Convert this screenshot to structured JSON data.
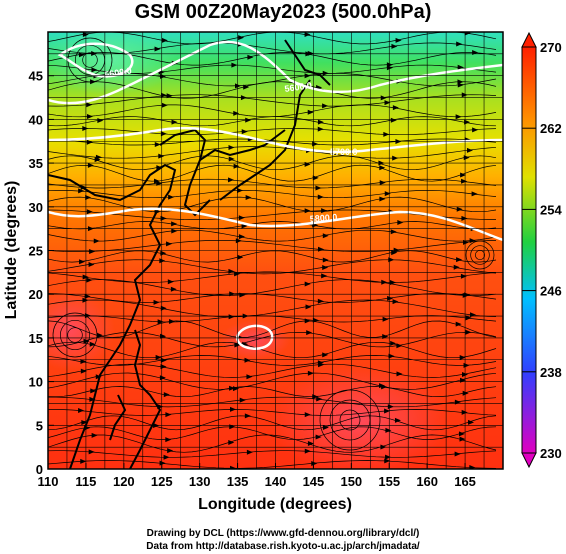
{
  "title": "GSM 00Z20May2023 (500.0hPa)",
  "x_axis": {
    "label": "Longitude (degrees)",
    "ticks": [
      "110",
      "115",
      "120",
      "125",
      "130",
      "135",
      "140",
      "145",
      "150",
      "155",
      "160",
      "165"
    ],
    "range": [
      110,
      170
    ]
  },
  "y_axis": {
    "label": "Latitude (degrees)",
    "ticks": [
      "0",
      "5",
      "10",
      "15",
      "20",
      "25",
      "30",
      "35",
      "40",
      "45"
    ],
    "range": [
      0,
      50
    ]
  },
  "colorbar": {
    "labels": [
      "270",
      "262",
      "254",
      "246",
      "238",
      "230"
    ],
    "range": [
      230,
      270
    ],
    "colors": [
      "#e000c0",
      "#4040ff",
      "#00c0ff",
      "#00e060",
      "#c0e000",
      "#ff9000",
      "#ff2000"
    ]
  },
  "contour_labels": [
    "5600.0",
    "5800.0",
    "5700.0",
    "5880.0"
  ],
  "credits": [
    "Drawing by DCL (https://www.gfd-dennou.org/library/dcl/)",
    "Data from http://database.rish.kyoto-u.ac.jp/arch/jmadata/"
  ]
}
